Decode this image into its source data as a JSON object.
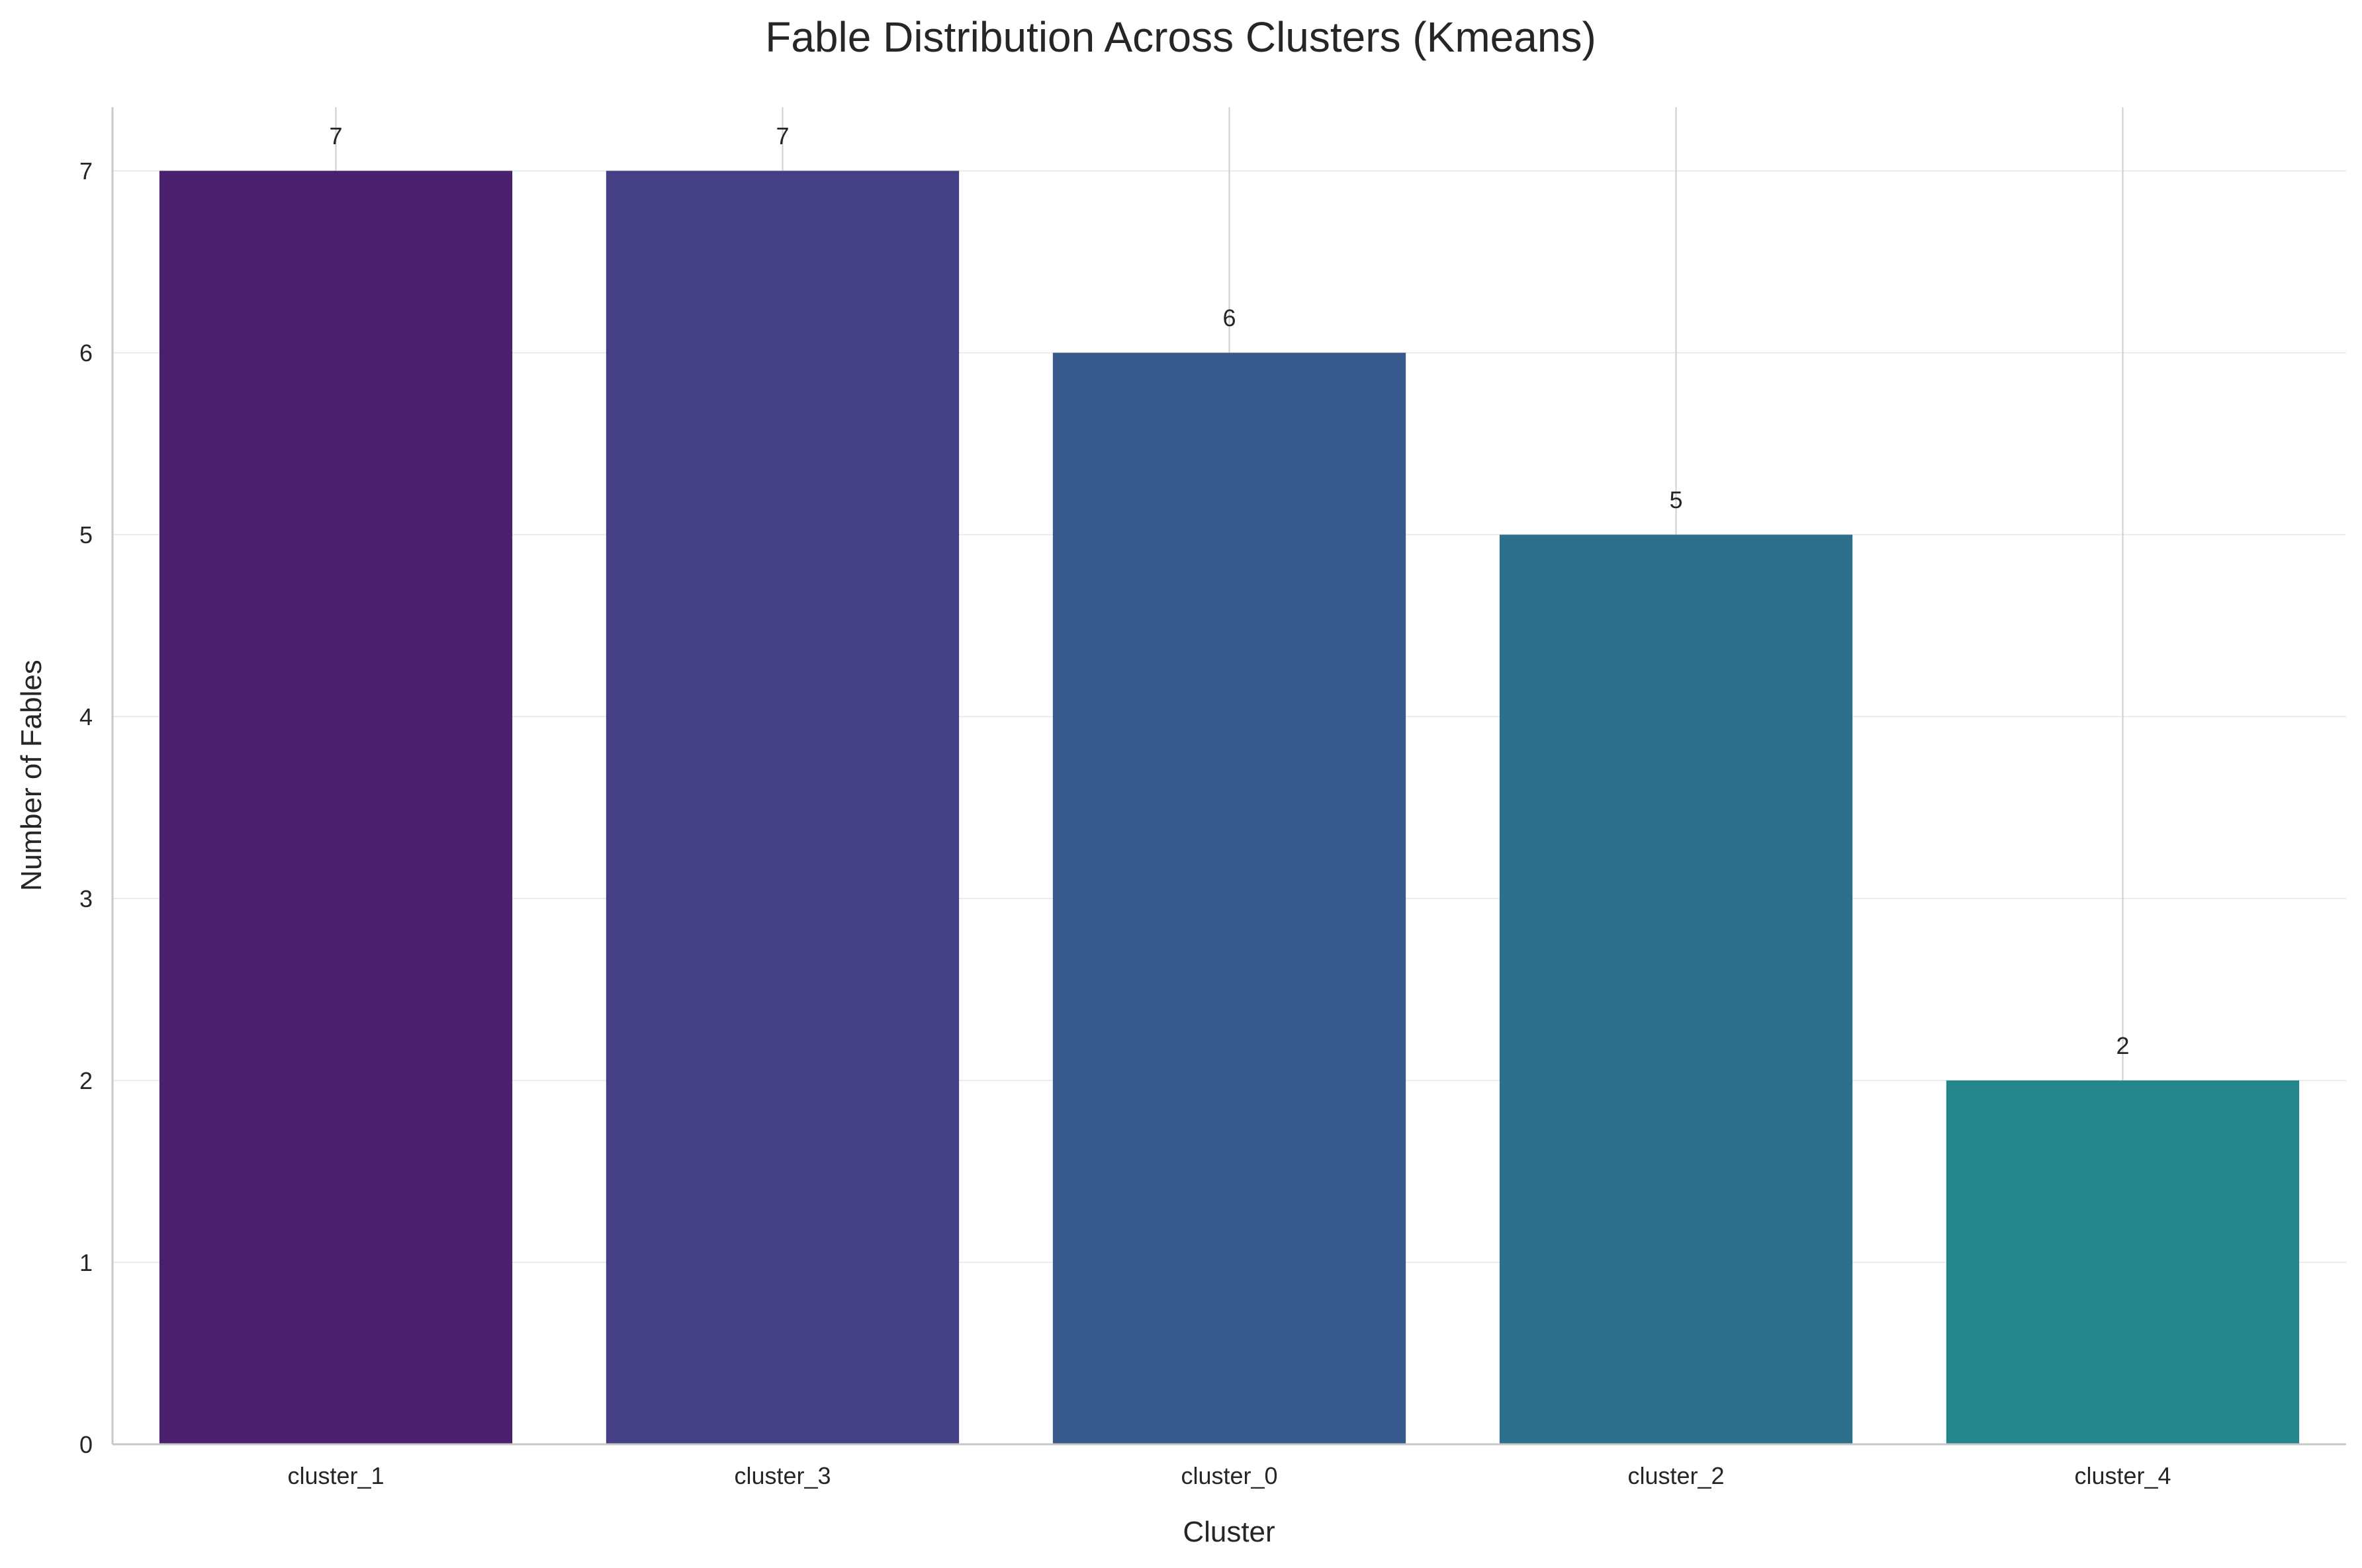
{
  "chart_data": {
    "type": "bar",
    "title": "Fable Distribution Across Clusters (Kmeans)",
    "xlabel": "Cluster",
    "ylabel": "Number of Fables",
    "categories": [
      "cluster_1",
      "cluster_3",
      "cluster_0",
      "cluster_2",
      "cluster_4"
    ],
    "values": [
      7,
      7,
      6,
      5,
      2
    ],
    "data_labels": [
      "7",
      "7",
      "6",
      "5",
      "2"
    ],
    "yticks": [
      "0",
      "1",
      "2",
      "3",
      "4",
      "5",
      "6",
      "7"
    ],
    "ylim": [
      0,
      7.35
    ],
    "grid": "y",
    "legend": "none",
    "colors": [
      "#4a206e",
      "#453f85",
      "#38598b",
      "#2e6f8c",
      "#23868b"
    ]
  }
}
